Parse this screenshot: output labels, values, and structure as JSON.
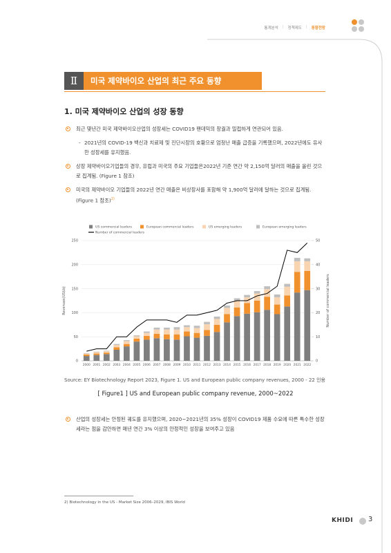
{
  "header": {
    "nav": [
      "통계분석",
      "정책제도",
      "동향전망"
    ]
  },
  "section": {
    "number": "Ⅱ",
    "title": "미국 제약바이오 산업의 최근 주요 동향"
  },
  "subsection": "1. 미국 제약바이오 산업의 성장 동향",
  "bullets": [
    {
      "text": "최근 몇년간 미국 제약바이오산업의 성장세는 COVID19 팬데믹의 창궐과 밀접하게 연관되어 있음.",
      "sub": "2021년의 COVID-19 백신과 치료제 및 진단시장의 호황으로 엄청난 매출 급증을 기록했으며, 2022년에도 유사한 성장세를 유지했음."
    },
    {
      "text": "상장 제약바이오기업들의 경우, 유럽과 미국의 주요 기업들은2022년 기준 연간 약 2,150억 달러의 매출을 올린 것으로 집계됨. (Figure 1 참조)"
    },
    {
      "text": "미국의 제약바이오 기업들의 2022년 연간 매출은 비상장사를 포함해 약 1,900억 달러에 달하는 것으로 집계됨. (Figure 1 참조)",
      "note": "2)"
    },
    {
      "text": "산업의 성장세는 안정된 궤도를 유지했으며, 2020~2021년의 35% 성장이 COVID19 제품 수요에 따른 특수한 성장세라는 점을 감안하면 매년 연간 3% 이상의 안정적인 성장을 보여주고 있음"
    }
  ],
  "chart_data": {
    "type": "bar",
    "stacked": true,
    "ylabel": "Revenues(US$b)",
    "y2label": "Number of commercial leaders",
    "categories": [
      "2000",
      "2001",
      "2002",
      "2003",
      "2004",
      "2005",
      "2006",
      "2007",
      "2008",
      "2009",
      "2010",
      "2011",
      "2012",
      "2013",
      "2014",
      "2015",
      "2016",
      "2017",
      "2018",
      "2019",
      "2020",
      "2021",
      "2022"
    ],
    "series": [
      {
        "name": "US commercial leaders",
        "color": "#7f7f7f",
        "values": [
          10,
          12,
          14,
          23,
          30,
          40,
          44,
          47,
          45,
          44,
          51,
          48,
          52,
          60,
          80,
          93,
          98,
          101,
          106,
          97,
          113,
          142,
          147
        ]
      },
      {
        "name": "European commercial leaders",
        "color": "#f0912d",
        "values": [
          3,
          3,
          3,
          5,
          5,
          6,
          8,
          9,
          10,
          11,
          10,
          10,
          12,
          15,
          17,
          18,
          22,
          24,
          27,
          20,
          23,
          43,
          40
        ]
      },
      {
        "name": "US emerging leaders",
        "color": "#f9d4b0",
        "values": [
          2,
          3,
          3,
          5,
          6,
          5,
          6,
          9,
          10,
          10,
          9,
          10,
          12,
          12,
          13,
          14,
          12,
          15,
          16,
          15,
          18,
          22,
          20
        ]
      },
      {
        "name": "European emerging leaders",
        "color": "#bfbfbf",
        "values": [
          1,
          1,
          1,
          2,
          2,
          2,
          3,
          4,
          4,
          5,
          4,
          5,
          5,
          5,
          5,
          5,
          5,
          5,
          6,
          6,
          6,
          7,
          6
        ]
      },
      {
        "name": "Number of commercial leaders",
        "color": "#000000",
        "type": "line",
        "axis": "y2",
        "values": [
          4,
          5,
          5,
          10,
          10,
          14,
          17,
          17,
          17,
          16,
          19,
          19,
          20,
          21,
          24,
          25,
          25,
          27,
          28,
          31,
          46,
          45,
          49
        ]
      }
    ],
    "ylim": [
      0,
      250
    ],
    "yticks": [
      0,
      50,
      100,
      150,
      200,
      250
    ],
    "y2lim": [
      0,
      50
    ],
    "y2ticks": [
      0,
      10,
      20,
      30,
      40,
      50
    ],
    "grid": true,
    "legend": "top"
  },
  "source": "Source: EY Biotechnology Report 2023, Figure 1. US and European public company revenues, 2000 - 22 인용",
  "figure_caption": "[ Figure1 ] US and European public company revenue, 2000~2022",
  "footnote": "2)  Biotechnology in the US - Market Size 2006–2029, IBIS World",
  "footer": {
    "logo": "KHIDI",
    "page": 3
  }
}
